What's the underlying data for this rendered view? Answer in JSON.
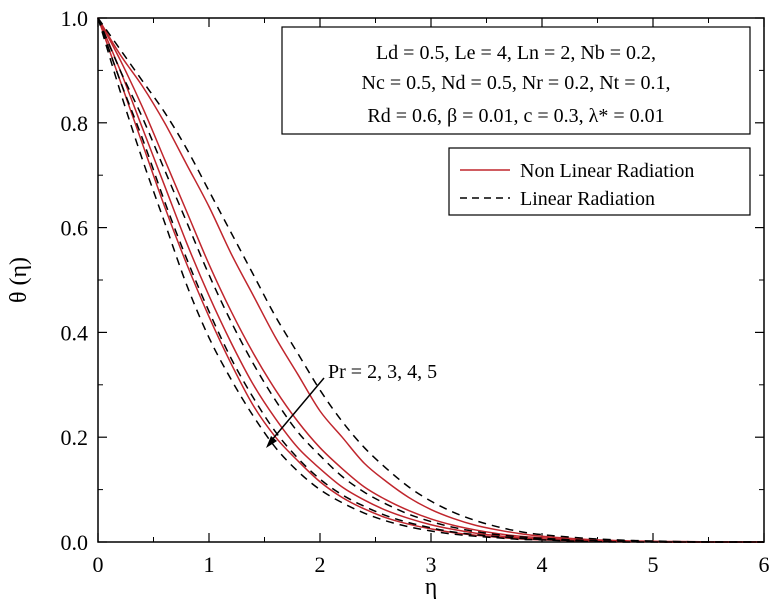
{
  "chart_data": {
    "type": "line",
    "xlabel": "η",
    "ylabel": "θ (η)",
    "xlim": [
      0,
      6
    ],
    "ylim": [
      0,
      1.0
    ],
    "x_ticks": [
      "0",
      "1",
      "2",
      "3",
      "4",
      "5",
      "6"
    ],
    "y_ticks": [
      "0.0",
      "0.2",
      "0.4",
      "0.6",
      "0.8",
      "1.0"
    ],
    "grid": false,
    "params_box": {
      "line1": "Ld = 0.5, Le = 4, Ln = 2, Nb = 0.2,",
      "line2": "Nc = 0.5, Nd = 0.5, Nr = 0.2, Nt = 0.1,",
      "line3": "Rd = 0.6, β = 0.01, c = 0.3, λ* = 0.01"
    },
    "legend": {
      "placement": "top-right",
      "entries": [
        {
          "label": "Non Linear Radiation",
          "color": "#c0262d",
          "dash": "solid"
        },
        {
          "label": "Linear Radiation",
          "color": "#000000",
          "dash": "dashed"
        }
      ]
    },
    "annotation": "Pr = 2, 3, 4, 5",
    "x": [
      0,
      0.2,
      0.4,
      0.6,
      0.8,
      1.0,
      1.2,
      1.4,
      1.6,
      1.8,
      2.0,
      2.2,
      2.4,
      2.6,
      2.8,
      3.0,
      3.2,
      3.4,
      3.6,
      3.8,
      4.0,
      4.4,
      4.8,
      5.2,
      5.6,
      6.0
    ],
    "series": [
      {
        "group": "Non Linear Radiation",
        "values": [
          1.0,
          0.93,
          0.87,
          0.8,
          0.72,
          0.64,
          0.55,
          0.47,
          0.39,
          0.32,
          0.25,
          0.2,
          0.15,
          0.115,
          0.085,
          0.062,
          0.045,
          0.032,
          0.023,
          0.016,
          0.011,
          0.005,
          0.002,
          0.001,
          0.0,
          0.0
        ]
      },
      {
        "group": "Non Linear Radiation",
        "values": [
          1.0,
          0.92,
          0.83,
          0.73,
          0.63,
          0.53,
          0.44,
          0.36,
          0.29,
          0.23,
          0.18,
          0.14,
          0.105,
          0.08,
          0.06,
          0.044,
          0.032,
          0.023,
          0.016,
          0.011,
          0.008,
          0.003,
          0.001,
          0.0,
          0.0,
          0.0
        ]
      },
      {
        "group": "Non Linear Radiation",
        "values": [
          1.0,
          0.9,
          0.79,
          0.68,
          0.57,
          0.47,
          0.38,
          0.3,
          0.235,
          0.18,
          0.14,
          0.105,
          0.08,
          0.06,
          0.045,
          0.033,
          0.024,
          0.017,
          0.012,
          0.008,
          0.005,
          0.002,
          0.001,
          0.0,
          0.0,
          0.0
        ]
      },
      {
        "group": "Non Linear Radiation",
        "values": [
          1.0,
          0.88,
          0.76,
          0.64,
          0.53,
          0.43,
          0.34,
          0.26,
          0.2,
          0.155,
          0.115,
          0.085,
          0.063,
          0.046,
          0.034,
          0.025,
          0.018,
          0.013,
          0.009,
          0.006,
          0.004,
          0.002,
          0.001,
          0.0,
          0.0,
          0.0
        ]
      },
      {
        "group": "Linear Radiation",
        "values": [
          1.0,
          0.94,
          0.88,
          0.82,
          0.75,
          0.67,
          0.59,
          0.51,
          0.43,
          0.36,
          0.29,
          0.23,
          0.18,
          0.14,
          0.105,
          0.078,
          0.057,
          0.041,
          0.029,
          0.02,
          0.014,
          0.007,
          0.003,
          0.001,
          0.0,
          0.0
        ]
      },
      {
        "group": "Linear Radiation",
        "values": [
          1.0,
          0.9,
          0.81,
          0.71,
          0.61,
          0.51,
          0.42,
          0.34,
          0.27,
          0.21,
          0.165,
          0.125,
          0.095,
          0.072,
          0.053,
          0.039,
          0.028,
          0.02,
          0.014,
          0.01,
          0.007,
          0.003,
          0.001,
          0.0,
          0.0,
          0.0
        ]
      },
      {
        "group": "Linear Radiation",
        "values": [
          1.0,
          0.88,
          0.77,
          0.65,
          0.54,
          0.44,
          0.35,
          0.275,
          0.21,
          0.16,
          0.12,
          0.09,
          0.068,
          0.05,
          0.037,
          0.027,
          0.019,
          0.014,
          0.01,
          0.007,
          0.005,
          0.002,
          0.001,
          0.0,
          0.0,
          0.0
        ]
      },
      {
        "group": "Linear Radiation",
        "values": [
          1.0,
          0.86,
          0.73,
          0.61,
          0.49,
          0.39,
          0.31,
          0.24,
          0.18,
          0.135,
          0.1,
          0.075,
          0.055,
          0.04,
          0.029,
          0.021,
          0.015,
          0.011,
          0.008,
          0.005,
          0.004,
          0.001,
          0.0,
          0.0,
          0.0,
          0.0
        ]
      }
    ]
  }
}
